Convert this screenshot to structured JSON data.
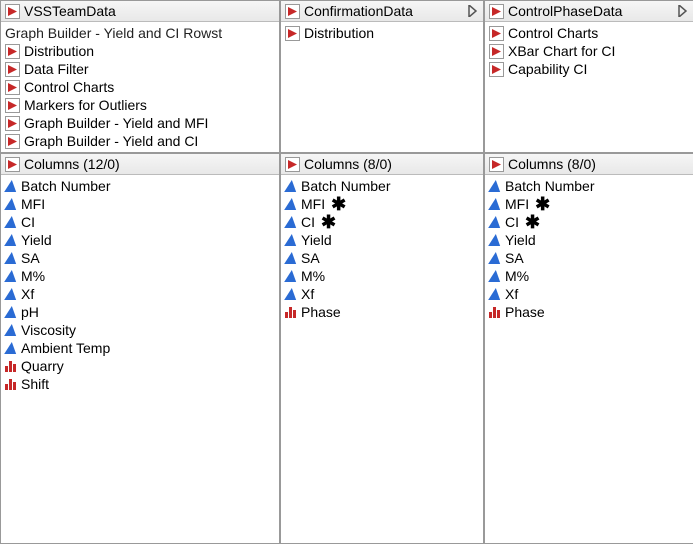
{
  "tables": [
    {
      "name": "VSSTeamData",
      "hasNav": false,
      "extraLine": "Graph Builder - Yield and CI  Rowst",
      "scripts": [
        "Distribution",
        "Data Filter",
        "Control Charts",
        "Markers for Outliers",
        "Graph Builder - Yield and MFI",
        "Graph Builder - Yield and CI"
      ],
      "columnsHeader": "Columns (12/0)",
      "columns": [
        {
          "label": "Batch Number",
          "icon": "continuous",
          "marked": false
        },
        {
          "label": "MFI",
          "icon": "continuous",
          "marked": false
        },
        {
          "label": "CI",
          "icon": "continuous",
          "marked": false
        },
        {
          "label": "Yield",
          "icon": "continuous",
          "marked": false
        },
        {
          "label": "SA",
          "icon": "continuous",
          "marked": false
        },
        {
          "label": "M%",
          "icon": "continuous",
          "marked": false
        },
        {
          "label": "Xf",
          "icon": "continuous",
          "marked": false
        },
        {
          "label": "pH",
          "icon": "continuous",
          "marked": false
        },
        {
          "label": "Viscosity",
          "icon": "continuous",
          "marked": false
        },
        {
          "label": "Ambient Temp",
          "icon": "continuous",
          "marked": false
        },
        {
          "label": "Quarry",
          "icon": "nominal",
          "marked": false
        },
        {
          "label": "Shift",
          "icon": "nominal",
          "marked": false
        }
      ]
    },
    {
      "name": "ConfirmationData",
      "hasNav": true,
      "extraLine": null,
      "scripts": [
        "Distribution"
      ],
      "columnsHeader": "Columns (8/0)",
      "columns": [
        {
          "label": "Batch Number",
          "icon": "continuous",
          "marked": false
        },
        {
          "label": "MFI",
          "icon": "continuous",
          "marked": true
        },
        {
          "label": "CI",
          "icon": "continuous",
          "marked": true
        },
        {
          "label": "Yield",
          "icon": "continuous",
          "marked": false
        },
        {
          "label": "SA",
          "icon": "continuous",
          "marked": false
        },
        {
          "label": "M%",
          "icon": "continuous",
          "marked": false
        },
        {
          "label": "Xf",
          "icon": "continuous",
          "marked": false
        },
        {
          "label": "Phase",
          "icon": "nominal",
          "marked": false
        }
      ]
    },
    {
      "name": "ControlPhaseData",
      "hasNav": true,
      "extraLine": null,
      "scripts": [
        "Control Charts",
        "XBar Chart for CI",
        "Capability CI"
      ],
      "columnsHeader": "Columns (8/0)",
      "columns": [
        {
          "label": "Batch Number",
          "icon": "continuous",
          "marked": false
        },
        {
          "label": "MFI",
          "icon": "continuous",
          "marked": true
        },
        {
          "label": "CI",
          "icon": "continuous",
          "marked": true
        },
        {
          "label": "Yield",
          "icon": "continuous",
          "marked": false
        },
        {
          "label": "SA",
          "icon": "continuous",
          "marked": false
        },
        {
          "label": "M%",
          "icon": "continuous",
          "marked": false
        },
        {
          "label": "Xf",
          "icon": "continuous",
          "marked": false
        },
        {
          "label": "Phase",
          "icon": "nominal",
          "marked": false
        }
      ]
    }
  ]
}
